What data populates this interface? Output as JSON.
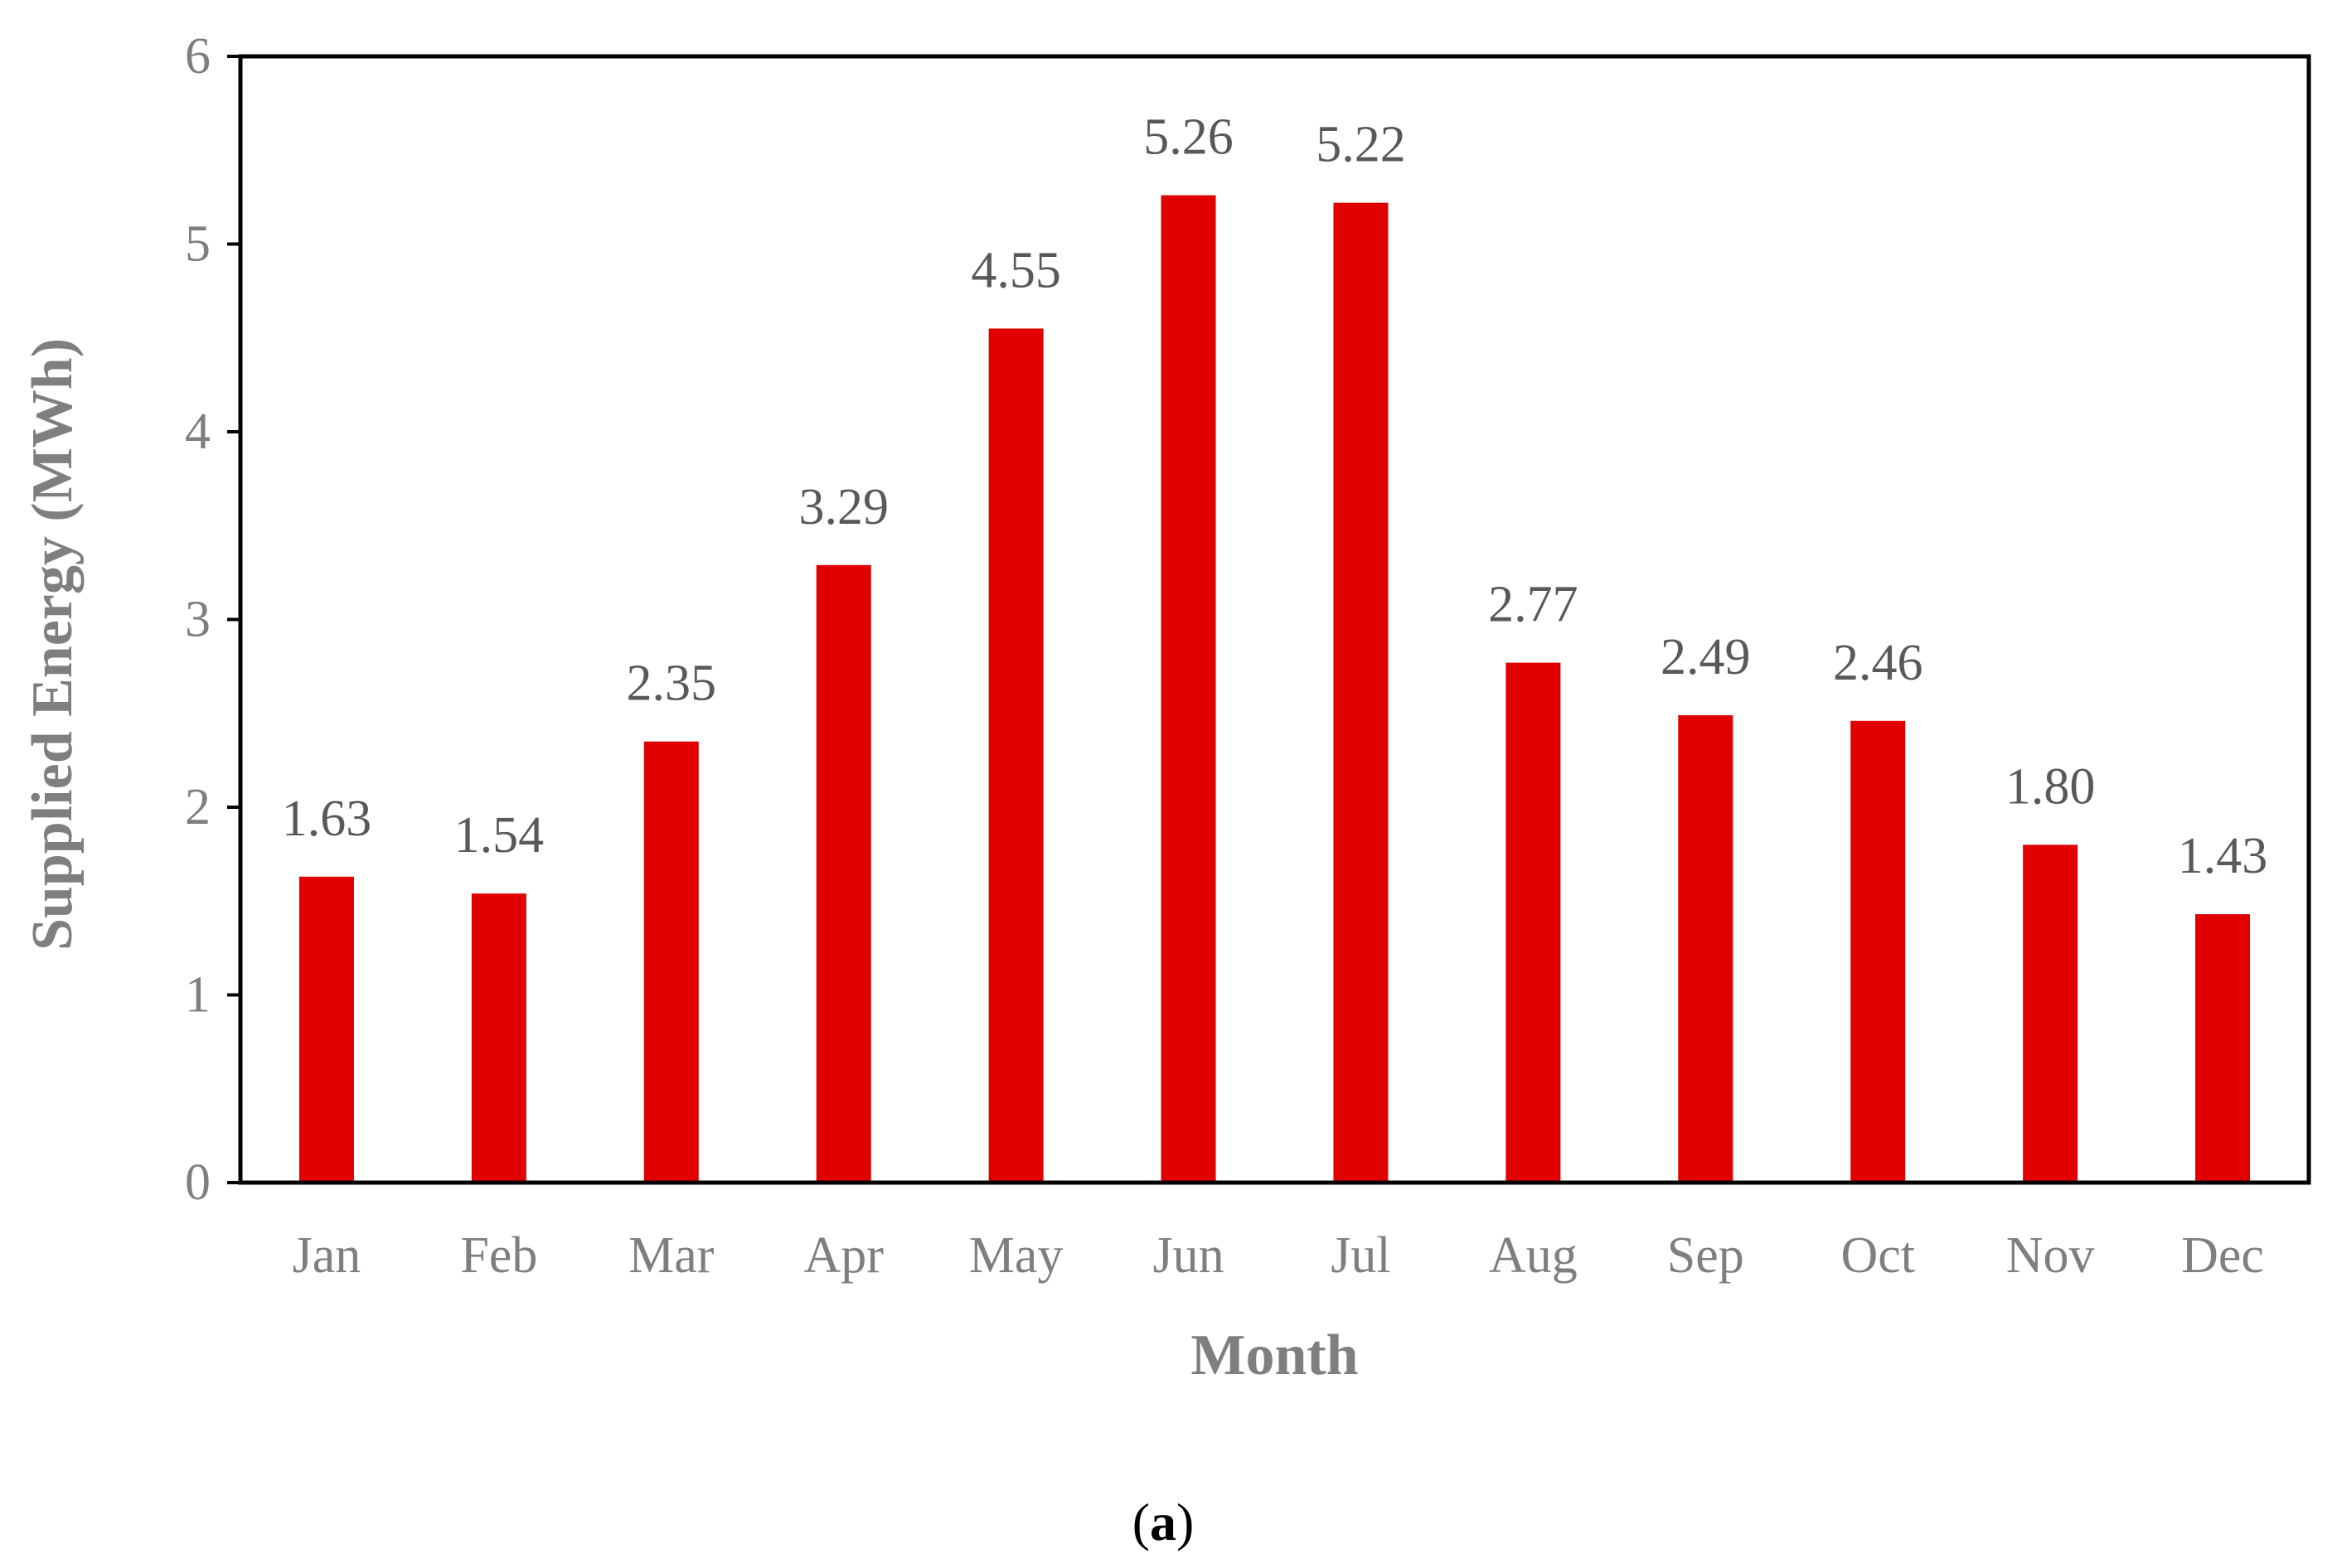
{
  "chart_data": {
    "type": "bar",
    "categories": [
      "Jan",
      "Feb",
      "Mar",
      "Apr",
      "May",
      "Jun",
      "Jul",
      "Aug",
      "Sep",
      "Oct",
      "Nov",
      "Dec"
    ],
    "values": [
      1.63,
      1.54,
      2.35,
      3.29,
      4.55,
      5.26,
      5.22,
      2.77,
      2.49,
      2.46,
      1.8,
      1.43
    ],
    "data_labels": [
      "1.63",
      "1.54",
      "2.35",
      "3.29",
      "4.55",
      "5.26",
      "5.22",
      "2.77",
      "2.49",
      "2.46",
      "1.80",
      "1.43"
    ],
    "title": "",
    "xlabel": "Month",
    "ylabel": "Supplied Energy (MWh)",
    "ylim": [
      0,
      6
    ],
    "yticks": [
      "0",
      "1",
      "2",
      "3",
      "4",
      "5",
      "6"
    ],
    "grid": false,
    "legend": "none",
    "bar_color": "#e00000"
  },
  "caption": {
    "open": "(",
    "letter": "a",
    "close": ")"
  }
}
